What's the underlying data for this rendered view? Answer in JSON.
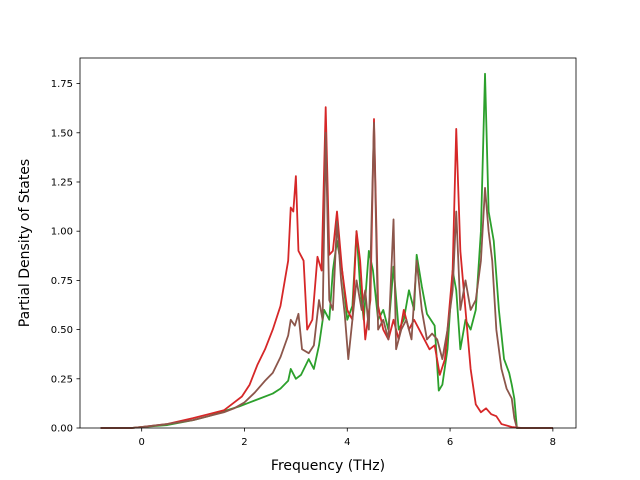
{
  "chart_data": {
    "type": "line",
    "title": "",
    "xlabel": "Frequency (THz)",
    "ylabel": "Partial Density of States",
    "xlim": [
      -1.2,
      8.45
    ],
    "ylim": [
      0.0,
      1.88
    ],
    "xticks": [
      0,
      2,
      4,
      6,
      8
    ],
    "xtick_labels": [
      "0",
      "2",
      "4",
      "6",
      "8"
    ],
    "yticks": [
      0.0,
      0.25,
      0.5,
      0.75,
      1.0,
      1.25,
      1.5,
      1.75
    ],
    "ytick_labels": [
      "0.00",
      "0.25",
      "0.50",
      "0.75",
      "1.00",
      "1.25",
      "1.50",
      "1.75"
    ],
    "grid": false,
    "legend": "none",
    "series": [
      {
        "color": "#2ca02c",
        "points": [
          [
            -0.8,
            0
          ],
          [
            -0.2,
            0
          ],
          [
            0,
            0.005
          ],
          [
            0.5,
            0.015
          ],
          [
            1.0,
            0.04
          ],
          [
            1.3,
            0.06
          ],
          [
            1.6,
            0.085
          ],
          [
            1.9,
            0.11
          ],
          [
            2.1,
            0.13
          ],
          [
            2.3,
            0.15
          ],
          [
            2.55,
            0.175
          ],
          [
            2.7,
            0.2
          ],
          [
            2.85,
            0.24
          ],
          [
            2.9,
            0.3
          ],
          [
            3.0,
            0.25
          ],
          [
            3.1,
            0.27
          ],
          [
            3.25,
            0.35
          ],
          [
            3.35,
            0.3
          ],
          [
            3.45,
            0.42
          ],
          [
            3.55,
            0.6
          ],
          [
            3.65,
            0.55
          ],
          [
            3.72,
            0.8
          ],
          [
            3.8,
            0.95
          ],
          [
            3.9,
            0.8
          ],
          [
            4.0,
            0.55
          ],
          [
            4.1,
            0.62
          ],
          [
            4.18,
            1.0
          ],
          [
            4.25,
            0.72
          ],
          [
            4.32,
            0.55
          ],
          [
            4.42,
            0.9
          ],
          [
            4.5,
            0.8
          ],
          [
            4.6,
            0.55
          ],
          [
            4.7,
            0.6
          ],
          [
            4.8,
            0.5
          ],
          [
            4.9,
            0.82
          ],
          [
            5.0,
            0.5
          ],
          [
            5.1,
            0.55
          ],
          [
            5.2,
            0.7
          ],
          [
            5.3,
            0.6
          ],
          [
            5.35,
            0.88
          ],
          [
            5.45,
            0.72
          ],
          [
            5.55,
            0.58
          ],
          [
            5.7,
            0.52
          ],
          [
            5.78,
            0.19
          ],
          [
            5.85,
            0.22
          ],
          [
            5.95,
            0.4
          ],
          [
            6.05,
            0.8
          ],
          [
            6.12,
            0.7
          ],
          [
            6.2,
            0.4
          ],
          [
            6.3,
            0.55
          ],
          [
            6.4,
            0.5
          ],
          [
            6.5,
            0.6
          ],
          [
            6.6,
            1.0
          ],
          [
            6.68,
            1.8
          ],
          [
            6.75,
            1.1
          ],
          [
            6.85,
            0.95
          ],
          [
            6.95,
            0.6
          ],
          [
            7.05,
            0.35
          ],
          [
            7.15,
            0.28
          ],
          [
            7.2,
            0.22
          ],
          [
            7.25,
            0.15
          ],
          [
            7.3,
            0.0
          ],
          [
            8.0,
            0.0
          ]
        ]
      },
      {
        "color": "#d62728",
        "points": [
          [
            -0.8,
            0
          ],
          [
            -0.2,
            0
          ],
          [
            0,
            0.005
          ],
          [
            0.5,
            0.02
          ],
          [
            1.0,
            0.05
          ],
          [
            1.3,
            0.07
          ],
          [
            1.6,
            0.09
          ],
          [
            1.8,
            0.13
          ],
          [
            1.95,
            0.16
          ],
          [
            2.1,
            0.22
          ],
          [
            2.25,
            0.32
          ],
          [
            2.4,
            0.4
          ],
          [
            2.55,
            0.5
          ],
          [
            2.7,
            0.62
          ],
          [
            2.85,
            0.85
          ],
          [
            2.9,
            1.12
          ],
          [
            2.95,
            1.1
          ],
          [
            3.0,
            1.28
          ],
          [
            3.05,
            0.9
          ],
          [
            3.15,
            0.85
          ],
          [
            3.22,
            0.5
          ],
          [
            3.32,
            0.55
          ],
          [
            3.42,
            0.87
          ],
          [
            3.5,
            0.8
          ],
          [
            3.58,
            1.63
          ],
          [
            3.65,
            0.88
          ],
          [
            3.72,
            0.9
          ],
          [
            3.8,
            1.1
          ],
          [
            3.9,
            0.8
          ],
          [
            4.0,
            0.6
          ],
          [
            4.1,
            0.55
          ],
          [
            4.18,
            1.0
          ],
          [
            4.25,
            0.85
          ],
          [
            4.35,
            0.45
          ],
          [
            4.45,
            0.65
          ],
          [
            4.52,
            1.57
          ],
          [
            4.6,
            0.62
          ],
          [
            4.7,
            0.5
          ],
          [
            4.8,
            0.45
          ],
          [
            4.9,
            0.55
          ],
          [
            5.0,
            0.45
          ],
          [
            5.1,
            0.6
          ],
          [
            5.2,
            0.5
          ],
          [
            5.3,
            0.55
          ],
          [
            5.4,
            0.5
          ],
          [
            5.5,
            0.45
          ],
          [
            5.6,
            0.4
          ],
          [
            5.7,
            0.42
          ],
          [
            5.8,
            0.27
          ],
          [
            5.9,
            0.35
          ],
          [
            6.05,
            0.8
          ],
          [
            6.12,
            1.52
          ],
          [
            6.2,
            0.9
          ],
          [
            6.3,
            0.6
          ],
          [
            6.4,
            0.3
          ],
          [
            6.5,
            0.12
          ],
          [
            6.6,
            0.08
          ],
          [
            6.7,
            0.1
          ],
          [
            6.8,
            0.07
          ],
          [
            6.9,
            0.06
          ],
          [
            7.0,
            0.02
          ],
          [
            7.2,
            0.005
          ],
          [
            7.4,
            0.0
          ],
          [
            8.0,
            0.0
          ]
        ]
      },
      {
        "color": "#8c564b",
        "points": [
          [
            -0.8,
            0
          ],
          [
            -0.2,
            0
          ],
          [
            0,
            0.005
          ],
          [
            0.5,
            0.02
          ],
          [
            1.0,
            0.04
          ],
          [
            1.3,
            0.06
          ],
          [
            1.6,
            0.08
          ],
          [
            1.8,
            0.1
          ],
          [
            2.0,
            0.13
          ],
          [
            2.2,
            0.18
          ],
          [
            2.4,
            0.24
          ],
          [
            2.55,
            0.28
          ],
          [
            2.7,
            0.36
          ],
          [
            2.85,
            0.47
          ],
          [
            2.9,
            0.55
          ],
          [
            2.98,
            0.52
          ],
          [
            3.05,
            0.58
          ],
          [
            3.12,
            0.4
          ],
          [
            3.25,
            0.38
          ],
          [
            3.35,
            0.42
          ],
          [
            3.45,
            0.65
          ],
          [
            3.52,
            0.55
          ],
          [
            3.58,
            1.5
          ],
          [
            3.65,
            0.65
          ],
          [
            3.72,
            0.6
          ],
          [
            3.8,
            1.05
          ],
          [
            3.88,
            0.75
          ],
          [
            3.95,
            0.58
          ],
          [
            4.02,
            0.35
          ],
          [
            4.1,
            0.55
          ],
          [
            4.18,
            0.75
          ],
          [
            4.28,
            0.6
          ],
          [
            4.35,
            0.7
          ],
          [
            4.42,
            0.5
          ],
          [
            4.52,
            1.55
          ],
          [
            4.6,
            0.5
          ],
          [
            4.7,
            0.55
          ],
          [
            4.8,
            0.45
          ],
          [
            4.9,
            1.06
          ],
          [
            4.95,
            0.4
          ],
          [
            5.05,
            0.5
          ],
          [
            5.15,
            0.55
          ],
          [
            5.25,
            0.45
          ],
          [
            5.35,
            0.85
          ],
          [
            5.45,
            0.6
          ],
          [
            5.55,
            0.45
          ],
          [
            5.65,
            0.48
          ],
          [
            5.75,
            0.45
          ],
          [
            5.85,
            0.35
          ],
          [
            5.95,
            0.5
          ],
          [
            6.05,
            0.7
          ],
          [
            6.12,
            1.1
          ],
          [
            6.2,
            0.6
          ],
          [
            6.3,
            0.75
          ],
          [
            6.4,
            0.6
          ],
          [
            6.5,
            0.65
          ],
          [
            6.6,
            0.85
          ],
          [
            6.68,
            1.22
          ],
          [
            6.75,
            1.0
          ],
          [
            6.82,
            0.85
          ],
          [
            6.9,
            0.5
          ],
          [
            7.0,
            0.3
          ],
          [
            7.1,
            0.2
          ],
          [
            7.2,
            0.15
          ],
          [
            7.25,
            0.05
          ],
          [
            7.3,
            0.0
          ],
          [
            8.0,
            0.0
          ]
        ]
      }
    ]
  }
}
